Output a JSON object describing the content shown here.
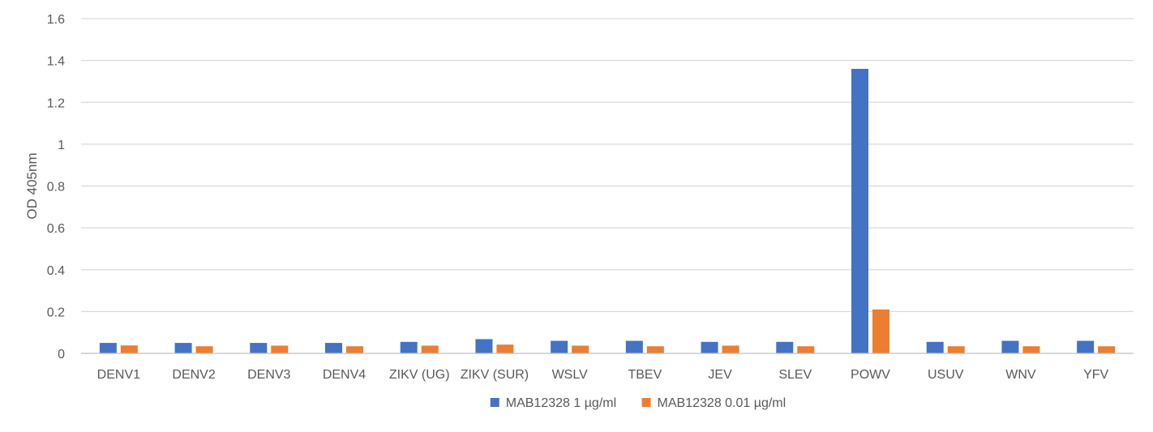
{
  "chart_data": {
    "type": "bar",
    "title": "",
    "xlabel": "",
    "ylabel": "OD 405nm",
    "ylim": [
      0,
      1.6
    ],
    "yticks": [
      "0",
      "0.2",
      "0.4",
      "0.6",
      "0.8",
      "1",
      "1.2",
      "1.4",
      "1.6"
    ],
    "grid": true,
    "legend_position": "bottom",
    "categories": [
      "DENV1",
      "DENV2",
      "DENV3",
      "DENV4",
      "ZIKV (UG)",
      "ZIKV (SUR)",
      "WSLV",
      "TBEV",
      "JEV",
      "SLEV",
      "POWV",
      "USUV",
      "WNV",
      "YFV"
    ],
    "series": [
      {
        "name": "MAB12328 1 µg/ml",
        "color": "#4472c4",
        "values": [
          0.05,
          0.05,
          0.05,
          0.05,
          0.055,
          0.068,
          0.06,
          0.06,
          0.055,
          0.055,
          1.36,
          0.055,
          0.06,
          0.06
        ]
      },
      {
        "name": "MAB12328 0.01 µg/ml",
        "color": "#ed7d31",
        "values": [
          0.038,
          0.034,
          0.037,
          0.034,
          0.037,
          0.042,
          0.037,
          0.034,
          0.037,
          0.034,
          0.21,
          0.034,
          0.034,
          0.034
        ]
      }
    ]
  }
}
